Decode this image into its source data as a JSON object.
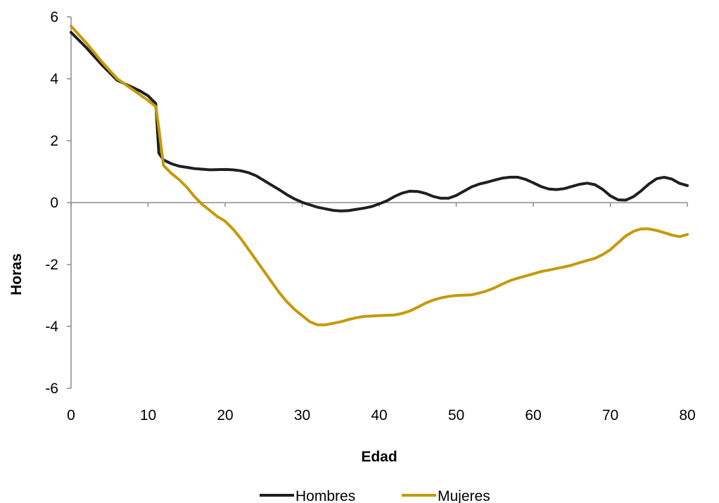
{
  "chart_data": {
    "type": "line",
    "title": "",
    "xlabel": "Edad",
    "ylabel": "Horas",
    "xlim": [
      0,
      80
    ],
    "ylim": [
      -6,
      6
    ],
    "xticks": [
      0,
      10,
      20,
      30,
      40,
      50,
      60,
      70,
      80
    ],
    "yticks": [
      -6,
      -4,
      -2,
      0,
      2,
      4,
      6
    ],
    "grid": false,
    "legend_position": "bottom",
    "series": [
      {
        "name": "Hombres",
        "color": "#1f1f1f",
        "x": [
          0,
          2,
          4,
          6,
          8,
          9,
          10,
          11,
          11.4,
          12,
          13,
          14,
          16,
          18,
          20,
          21,
          22,
          23,
          24,
          25,
          26,
          27,
          28,
          29,
          30,
          32,
          34,
          35,
          36,
          38,
          39,
          40,
          41,
          42,
          43,
          44,
          45,
          46,
          47,
          48,
          49,
          50,
          51,
          52,
          53,
          54,
          55,
          56,
          57,
          58,
          59,
          60,
          61,
          62,
          63,
          64,
          65,
          66,
          67,
          68,
          69,
          70,
          71,
          72,
          73,
          74,
          75,
          76,
          77,
          78,
          79,
          80
        ],
        "y": [
          5.5,
          5.0,
          4.45,
          3.95,
          3.72,
          3.6,
          3.45,
          3.2,
          1.6,
          1.38,
          1.26,
          1.18,
          1.1,
          1.06,
          1.07,
          1.06,
          1.03,
          0.97,
          0.87,
          0.72,
          0.57,
          0.42,
          0.26,
          0.12,
          0.01,
          -0.15,
          -0.25,
          -0.27,
          -0.26,
          -0.18,
          -0.13,
          -0.04,
          0.06,
          0.2,
          0.31,
          0.37,
          0.36,
          0.3,
          0.2,
          0.14,
          0.14,
          0.23,
          0.37,
          0.51,
          0.6,
          0.66,
          0.73,
          0.79,
          0.82,
          0.82,
          0.75,
          0.64,
          0.52,
          0.44,
          0.42,
          0.45,
          0.52,
          0.59,
          0.63,
          0.58,
          0.43,
          0.22,
          0.09,
          0.08,
          0.19,
          0.38,
          0.6,
          0.77,
          0.82,
          0.76,
          0.62,
          0.55
        ]
      },
      {
        "name": "Mujeres",
        "color": "#c49a0a",
        "x": [
          0,
          2,
          4,
          6,
          8,
          10,
          11,
          11.4,
          12,
          13,
          14,
          15,
          16,
          17,
          18,
          19,
          20,
          21,
          22,
          23,
          24,
          25,
          26,
          27,
          28,
          29,
          30,
          31,
          32,
          33,
          34,
          35,
          36,
          37,
          38,
          40,
          42,
          43,
          44,
          45,
          46,
          47,
          48,
          49,
          50,
          52,
          53,
          54,
          55,
          56,
          57,
          58,
          59,
          60,
          61,
          62,
          63,
          64,
          65,
          66,
          67,
          68,
          69,
          70,
          71,
          72,
          73,
          74,
          75,
          76,
          77,
          78,
          79,
          80
        ],
        "y": [
          5.7,
          5.15,
          4.55,
          4.0,
          3.65,
          3.3,
          3.1,
          2.4,
          1.2,
          0.95,
          0.75,
          0.5,
          0.2,
          -0.05,
          -0.25,
          -0.45,
          -0.6,
          -0.85,
          -1.15,
          -1.5,
          -1.85,
          -2.2,
          -2.55,
          -2.9,
          -3.2,
          -3.45,
          -3.65,
          -3.85,
          -3.95,
          -3.95,
          -3.9,
          -3.85,
          -3.78,
          -3.72,
          -3.68,
          -3.65,
          -3.63,
          -3.58,
          -3.5,
          -3.38,
          -3.25,
          -3.15,
          -3.08,
          -3.03,
          -3.0,
          -2.98,
          -2.92,
          -2.85,
          -2.75,
          -2.63,
          -2.52,
          -2.44,
          -2.37,
          -2.3,
          -2.23,
          -2.18,
          -2.13,
          -2.08,
          -2.02,
          -1.94,
          -1.87,
          -1.8,
          -1.68,
          -1.52,
          -1.3,
          -1.08,
          -0.93,
          -0.85,
          -0.85,
          -0.9,
          -0.97,
          -1.05,
          -1.1,
          -1.03
        ]
      }
    ]
  }
}
